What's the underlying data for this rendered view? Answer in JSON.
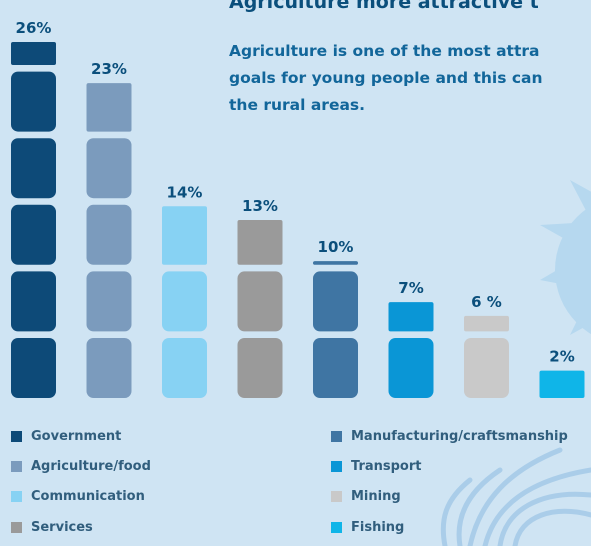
{
  "headline": "Agriculture more attractive t",
  "subtext_lines": [
    "Agriculture is one of the most attra",
    "goals for young people and this can",
    "the rural areas."
  ],
  "chart_data": {
    "type": "bar",
    "categories": [
      "Government",
      "Agriculture/food",
      "Communication",
      "Services",
      "Manufacturing/craftsmanship",
      "Transport",
      "Mining",
      "Fishing"
    ],
    "values": [
      26,
      23,
      14,
      13,
      10,
      7,
      6,
      2
    ],
    "value_labels": [
      "26%",
      "23%",
      "14%",
      "13%",
      "10%",
      "7%",
      "6 %",
      "2%"
    ],
    "colors": [
      "#0d4a78",
      "#7b9bbd",
      "#87d2f3",
      "#9a9a9a",
      "#3f75a3",
      "#0a96d6",
      "#c9c9c9",
      "#0fb5e8"
    ],
    "ylim": [
      0,
      26
    ],
    "legend": {
      "columns": [
        [
          "Government",
          "Agriculture/food",
          "Communication",
          "Services"
        ],
        [
          "Manufacturing/craftsmanship",
          "Transport",
          "Mining",
          "Fishing"
        ]
      ]
    }
  }
}
